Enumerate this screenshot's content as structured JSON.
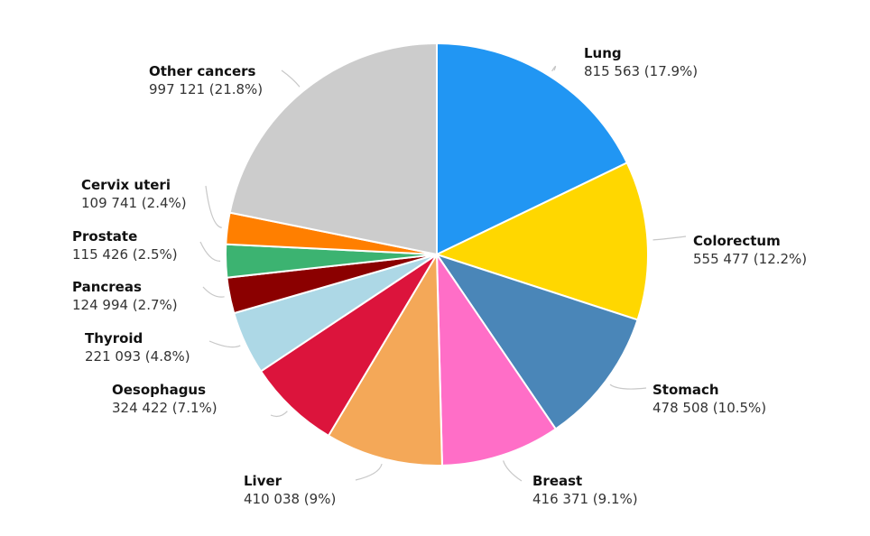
{
  "chart_data": {
    "type": "pie",
    "title": "",
    "slices": [
      {
        "label": "Lung",
        "value": 815563,
        "percent": 17.9,
        "value_text": "815 563 (17.9%)",
        "color": "#2196F3"
      },
      {
        "label": "Colorectum",
        "value": 555477,
        "percent": 12.2,
        "value_text": "555 477 (12.2%)",
        "color": "#FFD700"
      },
      {
        "label": "Stomach",
        "value": 478508,
        "percent": 10.5,
        "value_text": "478 508 (10.5%)",
        "color": "#4A86B8"
      },
      {
        "label": "Breast",
        "value": 416371,
        "percent": 9.1,
        "value_text": "416 371 (9.1%)",
        "color": "#FF6EC7"
      },
      {
        "label": "Liver",
        "value": 410038,
        "percent": 9,
        "value_text": "410 038 (9%)",
        "color": "#F4A858"
      },
      {
        "label": "Oesophagus",
        "value": 324422,
        "percent": 7.1,
        "value_text": "324 422 (7.1%)",
        "color": "#DC143C"
      },
      {
        "label": "Thyroid",
        "value": 221093,
        "percent": 4.8,
        "value_text": "221 093 (4.8%)",
        "color": "#ADD8E6"
      },
      {
        "label": "Pancreas",
        "value": 124994,
        "percent": 2.7,
        "value_text": "124 994 (2.7%)",
        "color": "#8B0000"
      },
      {
        "label": "Prostate",
        "value": 115426,
        "percent": 2.5,
        "value_text": "115 426 (2.5%)",
        "color": "#3CB371"
      },
      {
        "label": "Cervix uteri",
        "value": 109741,
        "percent": 2.4,
        "value_text": "109 741 (2.4%)",
        "color": "#FF7F00"
      },
      {
        "label": "Other cancers",
        "value": 997121,
        "percent": 21.8,
        "value_text": "997 121 (21.8%)",
        "color": "#CCCCCC"
      }
    ]
  }
}
